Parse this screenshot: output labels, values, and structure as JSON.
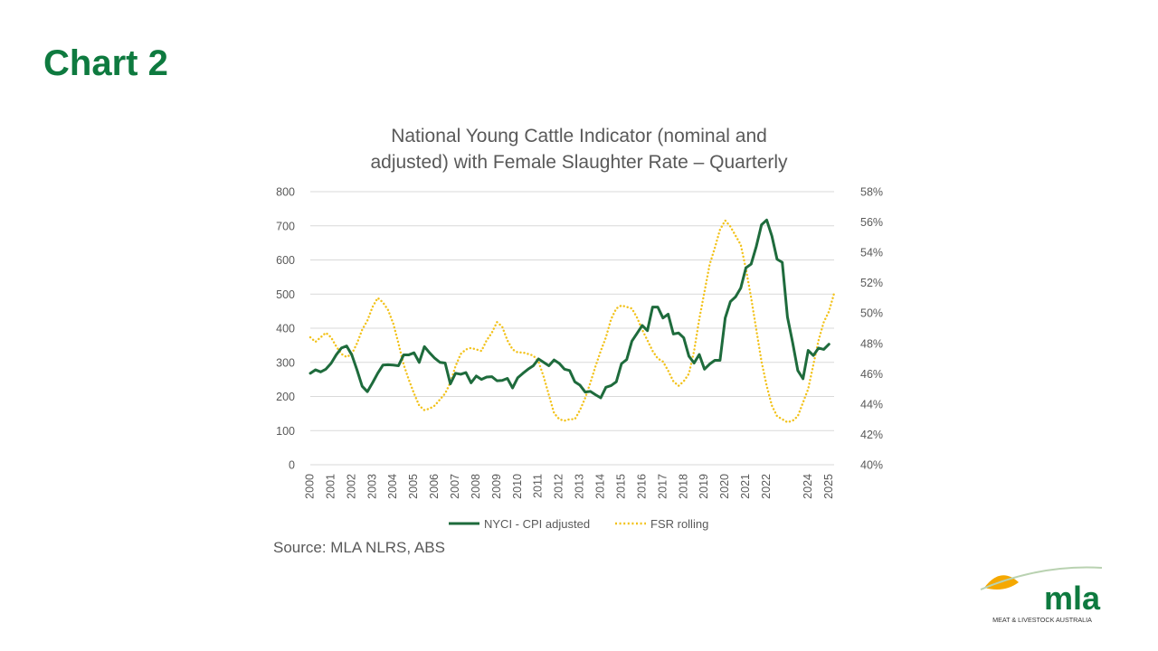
{
  "slide": {
    "title": "Chart 2",
    "source": "Source: MLA NLRS, ABS"
  },
  "colors": {
    "title_green": "#0e7a3f",
    "nyci_line": "#1e6b3c",
    "fsr_line": "#f2c21b",
    "gridline": "#d9d9d9",
    "text_gray": "#595959",
    "logo_green": "#0e7a3f",
    "logo_yellow": "#f5a800"
  },
  "logo": {
    "wordmark": "mla",
    "tagline": "MEAT & LIVESTOCK AUSTRALIA"
  },
  "chart_data": {
    "type": "line",
    "title_lines": [
      "National Young Cattle Indicator (nominal and",
      "adjusted) with Female Slaughter Rate – Quarterly"
    ],
    "xlabel": "",
    "ylabel": "",
    "y_left": {
      "min": 0,
      "max": 800,
      "ticks": [
        0,
        100,
        200,
        300,
        400,
        500,
        600,
        700,
        800
      ],
      "tick_labels": [
        "0",
        "100",
        "200",
        "300",
        "400",
        "500",
        "600",
        "700",
        "800"
      ]
    },
    "y_right": {
      "min": 40,
      "max": 58,
      "ticks": [
        40,
        42,
        44,
        46,
        48,
        50,
        52,
        54,
        56,
        58
      ],
      "tick_labels": [
        "40%",
        "42%",
        "44%",
        "46%",
        "48%",
        "50%",
        "52%",
        "54%",
        "56%",
        "58%"
      ]
    },
    "x_axis": {
      "min": 2000,
      "max": 2025.25,
      "tick_values": [
        2000,
        2001,
        2002,
        2003,
        2004,
        2005,
        2006,
        2007,
        2008,
        2009,
        2010,
        2011,
        2012,
        2013,
        2014,
        2015,
        2016,
        2017,
        2018,
        2019,
        2020,
        2021,
        2022,
        2024,
        2025
      ],
      "tick_labels": [
        "2000",
        "2001",
        "2002",
        "2003",
        "2004",
        "2005",
        "2006",
        "2007",
        "2008",
        "2009",
        "2010",
        "2011",
        "2012",
        "2013",
        "2014",
        "2015",
        "2016",
        "2017",
        "2018",
        "2019",
        "2020",
        "2021",
        "2022",
        "2024",
        "2025"
      ]
    },
    "grid": "horizontal",
    "legend_position": "bottom",
    "series": [
      {
        "name": "NYCI - CPI adjusted",
        "axis": "left",
        "style": "solid",
        "points": [
          [
            2000.0,
            268
          ],
          [
            2000.25,
            278
          ],
          [
            2000.5,
            272
          ],
          [
            2000.75,
            280
          ],
          [
            2001.0,
            297
          ],
          [
            2001.25,
            322
          ],
          [
            2001.5,
            342
          ],
          [
            2001.75,
            348
          ],
          [
            2002.0,
            322
          ],
          [
            2002.25,
            278
          ],
          [
            2002.5,
            230
          ],
          [
            2002.75,
            214
          ],
          [
            2003.0,
            240
          ],
          [
            2003.25,
            268
          ],
          [
            2003.5,
            292
          ],
          [
            2003.75,
            293
          ],
          [
            2004.0,
            292
          ],
          [
            2004.25,
            290
          ],
          [
            2004.5,
            322
          ],
          [
            2004.75,
            322
          ],
          [
            2005.0,
            328
          ],
          [
            2005.25,
            300
          ],
          [
            2005.5,
            346
          ],
          [
            2005.75,
            328
          ],
          [
            2006.0,
            312
          ],
          [
            2006.25,
            300
          ],
          [
            2006.5,
            298
          ],
          [
            2006.75,
            237
          ],
          [
            2007.0,
            268
          ],
          [
            2007.25,
            265
          ],
          [
            2007.5,
            270
          ],
          [
            2007.75,
            240
          ],
          [
            2008.0,
            260
          ],
          [
            2008.25,
            250
          ],
          [
            2008.5,
            257
          ],
          [
            2008.75,
            258
          ],
          [
            2009.0,
            246
          ],
          [
            2009.25,
            247
          ],
          [
            2009.5,
            253
          ],
          [
            2009.75,
            225
          ],
          [
            2010.0,
            255
          ],
          [
            2010.25,
            268
          ],
          [
            2010.5,
            280
          ],
          [
            2010.75,
            290
          ],
          [
            2011.0,
            310
          ],
          [
            2011.25,
            300
          ],
          [
            2011.5,
            290
          ],
          [
            2011.75,
            307
          ],
          [
            2012.0,
            297
          ],
          [
            2012.25,
            280
          ],
          [
            2012.5,
            276
          ],
          [
            2012.75,
            243
          ],
          [
            2013.0,
            233
          ],
          [
            2013.25,
            213
          ],
          [
            2013.5,
            215
          ],
          [
            2013.75,
            205
          ],
          [
            2014.0,
            196
          ],
          [
            2014.25,
            227
          ],
          [
            2014.5,
            232
          ],
          [
            2014.75,
            243
          ],
          [
            2015.0,
            296
          ],
          [
            2015.25,
            308
          ],
          [
            2015.5,
            362
          ],
          [
            2015.75,
            385
          ],
          [
            2016.0,
            408
          ],
          [
            2016.25,
            393
          ],
          [
            2016.5,
            462
          ],
          [
            2016.75,
            462
          ],
          [
            2017.0,
            430
          ],
          [
            2017.25,
            441
          ],
          [
            2017.5,
            383
          ],
          [
            2017.75,
            386
          ],
          [
            2018.0,
            372
          ],
          [
            2018.25,
            318
          ],
          [
            2018.5,
            298
          ],
          [
            2018.75,
            323
          ],
          [
            2019.0,
            280
          ],
          [
            2019.25,
            295
          ],
          [
            2019.5,
            306
          ],
          [
            2019.75,
            306
          ],
          [
            2020.0,
            430
          ],
          [
            2020.25,
            478
          ],
          [
            2020.5,
            492
          ],
          [
            2020.75,
            518
          ],
          [
            2021.0,
            577
          ],
          [
            2021.25,
            588
          ],
          [
            2021.5,
            640
          ],
          [
            2021.75,
            703
          ],
          [
            2022.0,
            717
          ],
          [
            2022.25,
            670
          ],
          [
            2022.5,
            602
          ],
          [
            2022.75,
            593
          ],
          [
            2023.0,
            433
          ],
          [
            2023.25,
            358
          ],
          [
            2023.5,
            276
          ],
          [
            2023.75,
            252
          ],
          [
            2024.0,
            335
          ],
          [
            2024.25,
            320
          ],
          [
            2024.5,
            342
          ],
          [
            2024.75,
            338
          ],
          [
            2025.0,
            353
          ]
        ]
      },
      {
        "name": "FSR rolling",
        "axis": "right",
        "style": "dotted",
        "points": [
          [
            2000.0,
            48.4
          ],
          [
            2000.25,
            48.1
          ],
          [
            2000.5,
            48.4
          ],
          [
            2000.75,
            48.7
          ],
          [
            2001.0,
            48.4
          ],
          [
            2001.25,
            47.8
          ],
          [
            2001.5,
            47.3
          ],
          [
            2001.75,
            47.1
          ],
          [
            2002.0,
            47.3
          ],
          [
            2002.25,
            48.0
          ],
          [
            2002.5,
            48.9
          ],
          [
            2002.75,
            49.5
          ],
          [
            2003.0,
            50.4
          ],
          [
            2003.25,
            51.0
          ],
          [
            2003.5,
            50.7
          ],
          [
            2003.75,
            50.2
          ],
          [
            2004.0,
            49.3
          ],
          [
            2004.25,
            48.0
          ],
          [
            2004.5,
            46.6
          ],
          [
            2004.75,
            45.6
          ],
          [
            2005.0,
            44.7
          ],
          [
            2005.25,
            43.9
          ],
          [
            2005.5,
            43.6
          ],
          [
            2005.75,
            43.7
          ],
          [
            2006.0,
            43.9
          ],
          [
            2006.25,
            44.3
          ],
          [
            2006.5,
            44.7
          ],
          [
            2006.75,
            45.4
          ],
          [
            2007.0,
            46.5
          ],
          [
            2007.25,
            47.3
          ],
          [
            2007.5,
            47.6
          ],
          [
            2007.75,
            47.7
          ],
          [
            2008.0,
            47.6
          ],
          [
            2008.25,
            47.5
          ],
          [
            2008.5,
            48.2
          ],
          [
            2008.75,
            48.7
          ],
          [
            2009.0,
            49.4
          ],
          [
            2009.25,
            49.1
          ],
          [
            2009.5,
            48.2
          ],
          [
            2009.75,
            47.6
          ],
          [
            2010.0,
            47.4
          ],
          [
            2010.25,
            47.4
          ],
          [
            2010.5,
            47.3
          ],
          [
            2010.75,
            47.2
          ],
          [
            2011.0,
            46.8
          ],
          [
            2011.25,
            45.8
          ],
          [
            2011.5,
            44.6
          ],
          [
            2011.75,
            43.4
          ],
          [
            2012.0,
            43.0
          ],
          [
            2012.25,
            42.9
          ],
          [
            2012.5,
            43.0
          ],
          [
            2012.75,
            43.0
          ],
          [
            2013.0,
            43.6
          ],
          [
            2013.25,
            44.4
          ],
          [
            2013.5,
            45.4
          ],
          [
            2013.75,
            46.5
          ],
          [
            2014.0,
            47.5
          ],
          [
            2014.25,
            48.4
          ],
          [
            2014.5,
            49.6
          ],
          [
            2014.75,
            50.3
          ],
          [
            2015.0,
            50.5
          ],
          [
            2015.25,
            50.4
          ],
          [
            2015.5,
            50.3
          ],
          [
            2015.75,
            49.7
          ],
          [
            2016.0,
            48.9
          ],
          [
            2016.25,
            48.2
          ],
          [
            2016.5,
            47.5
          ],
          [
            2016.75,
            47.0
          ],
          [
            2017.0,
            46.8
          ],
          [
            2017.25,
            46.2
          ],
          [
            2017.5,
            45.5
          ],
          [
            2017.75,
            45.2
          ],
          [
            2018.0,
            45.5
          ],
          [
            2018.25,
            46.0
          ],
          [
            2018.5,
            47.5
          ],
          [
            2018.75,
            49.6
          ],
          [
            2019.0,
            51.4
          ],
          [
            2019.25,
            53.2
          ],
          [
            2019.5,
            54.3
          ],
          [
            2019.75,
            55.5
          ],
          [
            2020.0,
            56.1
          ],
          [
            2020.25,
            55.7
          ],
          [
            2020.5,
            55.1
          ],
          [
            2020.75,
            54.5
          ],
          [
            2021.0,
            52.9
          ],
          [
            2021.25,
            51.0
          ],
          [
            2021.5,
            48.9
          ],
          [
            2021.75,
            46.8
          ],
          [
            2022.0,
            45.2
          ],
          [
            2022.25,
            43.9
          ],
          [
            2022.5,
            43.2
          ],
          [
            2022.75,
            43.0
          ],
          [
            2023.0,
            42.8
          ],
          [
            2023.25,
            42.9
          ],
          [
            2023.5,
            43.2
          ],
          [
            2023.75,
            44.1
          ],
          [
            2024.0,
            45.0
          ],
          [
            2024.25,
            46.6
          ],
          [
            2024.5,
            48.2
          ],
          [
            2024.75,
            49.4
          ],
          [
            2025.0,
            50.1
          ],
          [
            2025.25,
            51.3
          ]
        ]
      }
    ]
  }
}
